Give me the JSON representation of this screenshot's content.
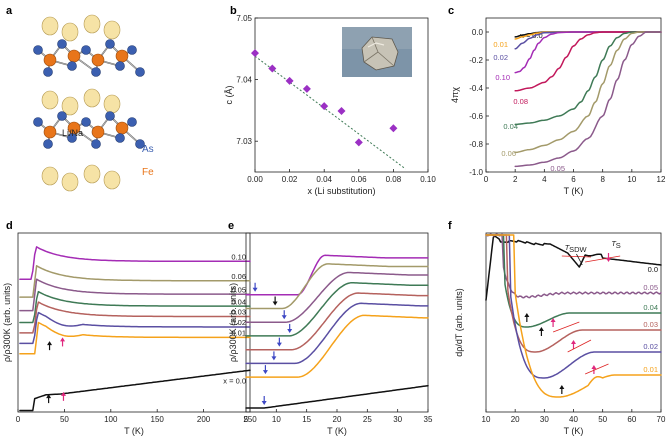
{
  "panels": {
    "a": {
      "label": "a",
      "species": [
        {
          "name": "Li/Na",
          "color": "#f6e3a6"
        },
        {
          "name": "As",
          "color": "#3b5fb0"
        },
        {
          "name": "Fe",
          "color": "#e8751a"
        }
      ]
    },
    "b": {
      "label": "b"
    },
    "c": {
      "label": "c"
    },
    "d": {
      "label": "d"
    },
    "e": {
      "label": "e"
    },
    "f": {
      "label": "f"
    }
  },
  "colors": {
    "x0.00": "#111111",
    "x0.01": "#f5a21b",
    "x0.02": "#5a4fa2",
    "x0.03": "#b5625e",
    "x0.04": "#3f7a56",
    "x0.05": "#8b5a8b",
    "x0.06": "#a39a6a",
    "x0.08": "#c2185b",
    "x0.10": "#a42cb5",
    "arrow_black": "#111111",
    "arrow_pink": "#e0287e",
    "arrow_blue": "#3d47c4",
    "marker_b": "#9b30c4"
  },
  "chart_data": [
    {
      "panel": "b",
      "type": "scatter",
      "ylabel": "c (Å)",
      "xlabel": "x (Li substitution)",
      "xlim": [
        0,
        0.1
      ],
      "ylim": [
        7.025,
        7.05
      ],
      "xticks": [
        "0.00",
        "0.02",
        "0.04",
        "0.06",
        "0.08",
        "0.10"
      ],
      "yticks": [
        "7.03",
        "7.04",
        "7.05"
      ],
      "points": {
        "x": [
          0.0,
          0.01,
          0.02,
          0.03,
          0.04,
          0.05,
          0.06,
          0.08
        ],
        "y": [
          7.0443,
          7.0418,
          7.0398,
          7.0385,
          7.0357,
          7.0349,
          7.0298,
          7.0321
        ]
      },
      "fit": {
        "x": [
          0.0,
          0.087
        ],
        "y": [
          7.0438,
          7.0255
        ]
      }
    },
    {
      "panel": "c",
      "type": "line",
      "ylabel": "4πχ",
      "xlabel": "T (K)",
      "xlim": [
        0,
        12
      ],
      "ylim": [
        -1.0,
        0.1
      ],
      "xticks": [
        "0",
        "2",
        "4",
        "6",
        "8",
        "10",
        "12"
      ],
      "yticks": [
        "0.0",
        "-0.2",
        "-0.4",
        "-0.6",
        "-0.8",
        "-1.0"
      ],
      "series": [
        {
          "name": "x = 0.0",
          "color_key": "x0.00",
          "x": [
            2.0,
            2.5,
            3.0,
            3.5,
            4,
            6,
            12
          ],
          "y": [
            -0.035,
            -0.022,
            -0.012,
            -0.004,
            0.0,
            0.0,
            0.0
          ]
        },
        {
          "name": "0.01",
          "color_key": "x0.01",
          "x": [
            2.0,
            2.5,
            3.0,
            3.5,
            4,
            6,
            12
          ],
          "y": [
            -0.05,
            -0.034,
            -0.02,
            -0.008,
            -0.002,
            0.0,
            0.0
          ]
        },
        {
          "name": "0.02",
          "color_key": "x0.02",
          "x": [
            2.0,
            2.5,
            3.0,
            3.5,
            4,
            6,
            12
          ],
          "y": [
            -0.12,
            -0.08,
            -0.045,
            -0.02,
            -0.005,
            0.0,
            0.0
          ]
        },
        {
          "name": "0.10",
          "color_key": "x0.10",
          "x": [
            2.0,
            2.3,
            2.6,
            3.0,
            3.3,
            3.6,
            4.0,
            4.5,
            5.0,
            6,
            12
          ],
          "y": [
            -0.29,
            -0.282,
            -0.255,
            -0.19,
            -0.13,
            -0.08,
            -0.04,
            -0.015,
            -0.004,
            0.0,
            0.0
          ]
        },
        {
          "name": "0.08",
          "color_key": "x0.08",
          "x": [
            2.0,
            3.0,
            4.0,
            4.5,
            5.0,
            5.5,
            6.0,
            6.5,
            7.0,
            7.5,
            8.0,
            12
          ],
          "y": [
            -0.42,
            -0.4,
            -0.36,
            -0.32,
            -0.26,
            -0.18,
            -0.1,
            -0.05,
            -0.02,
            -0.005,
            0.0,
            0.0
          ]
        },
        {
          "name": "0.04",
          "color_key": "x0.04",
          "x": [
            2.0,
            3.0,
            4.0,
            5.0,
            6.0,
            6.5,
            7.0,
            7.5,
            8.0,
            8.5,
            9.0,
            9.5,
            10.0,
            12
          ],
          "y": [
            -0.66,
            -0.65,
            -0.63,
            -0.6,
            -0.55,
            -0.5,
            -0.42,
            -0.32,
            -0.2,
            -0.1,
            -0.04,
            -0.01,
            0.0,
            0.0
          ]
        },
        {
          "name": "0.06",
          "color_key": "x0.06",
          "x": [
            2.0,
            3.0,
            4.0,
            5.0,
            6.0,
            7.0,
            7.5,
            8.0,
            8.5,
            9.0,
            9.5,
            10.0,
            10.5,
            12
          ],
          "y": [
            -0.86,
            -0.84,
            -0.81,
            -0.77,
            -0.71,
            -0.6,
            -0.5,
            -0.37,
            -0.24,
            -0.13,
            -0.05,
            -0.01,
            0.0,
            0.0
          ]
        },
        {
          "name": "0.05",
          "color_key": "x0.05",
          "x": [
            2.0,
            3.0,
            4.0,
            5.0,
            6.0,
            7.0,
            8.0,
            8.5,
            9.0,
            9.5,
            10.0,
            10.5,
            11.0,
            12
          ],
          "y": [
            -0.96,
            -0.95,
            -0.93,
            -0.9,
            -0.85,
            -0.76,
            -0.6,
            -0.48,
            -0.34,
            -0.2,
            -0.09,
            -0.03,
            0.0,
            0.0
          ]
        }
      ]
    },
    {
      "panel": "d",
      "type": "line",
      "ylabel": "ρ/ρ300K (arb. units)",
      "xlabel": "T (K)",
      "xlim": [
        0,
        250
      ],
      "ylim": [
        0,
        12
      ],
      "xticks": [
        "0",
        "50",
        "100",
        "150",
        "200",
        "250"
      ],
      "series": [
        {
          "name": "0.10",
          "color_key": "x0.10",
          "offset": 9.9,
          "drop": 1.0,
          "tc": 15
        },
        {
          "name": "0.06",
          "color_key": "x0.06",
          "offset": 8.6,
          "drop": 0.9,
          "tc": 16
        },
        {
          "name": "0.05",
          "color_key": "x0.05",
          "offset": 7.7,
          "drop": 0.9,
          "tc": 16
        },
        {
          "name": "0.04",
          "color_key": "x0.04",
          "offset": 6.9,
          "drop": 0.9,
          "tc": 17
        },
        {
          "name": "0.03",
          "color_key": "x0.03",
          "offset": 6.2,
          "drop": 0.9,
          "tc": 17
        },
        {
          "name": "0.02",
          "color_key": "x0.02",
          "offset": 5.5,
          "drop": 0.9,
          "tc": 17
        },
        {
          "name": "0.01",
          "color_key": "x0.01",
          "offset": 4.8,
          "drop": 0.9,
          "tc": 18
        },
        {
          "name": "x = 0.0",
          "color_key": "x0.00",
          "offset": 0.9,
          "drop": 0.8,
          "tc": 18
        }
      ]
    },
    {
      "panel": "e",
      "type": "line",
      "ylabel": "ρ/ρ300K (arb. units)",
      "xlabel": "T (K)",
      "xlim": [
        5,
        35
      ],
      "xticks": [
        "5",
        "10",
        "15",
        "20",
        "25",
        "30",
        "35"
      ],
      "series": [
        {
          "name": "0.10",
          "color_key": "x0.10",
          "base": 6.6,
          "onset": 13.5,
          "end": 18.0,
          "step": 2.3
        },
        {
          "name": "0.06",
          "color_key": "x0.06",
          "base": 5.8,
          "onset": 11.0,
          "end": 18.5,
          "step": 2.6
        },
        {
          "name": "0.05",
          "color_key": "x0.05",
          "base": 5.0,
          "onset": 11.5,
          "end": 22.0,
          "step": 2.9
        },
        {
          "name": "0.04",
          "color_key": "x0.04",
          "base": 4.2,
          "onset": 12.0,
          "end": 22.5,
          "step": 3.1
        },
        {
          "name": "0.03",
          "color_key": "x0.03",
          "base": 3.4,
          "onset": 12.5,
          "end": 23.5,
          "step": 3.3
        },
        {
          "name": "0.02",
          "color_key": "x0.02",
          "base": 2.6,
          "onset": 13.0,
          "end": 24.0,
          "step": 3.5
        },
        {
          "name": "0.01",
          "color_key": "x0.01",
          "base": 1.8,
          "onset": 13.5,
          "end": 24.5,
          "step": 3.6
        },
        {
          "name": "x = 0.0",
          "color_key": "x0.00",
          "base": 0.0,
          "onset": 8.0,
          "end": 35.0,
          "step": 1.3
        }
      ],
      "arrows_x": [
        6.5,
        9.8,
        11.3,
        12.2,
        10.5,
        9.6,
        8.2
      ]
    },
    {
      "panel": "f",
      "type": "line",
      "ylabel": "dρ/dT (arb. units)",
      "xlabel": "T (K)",
      "xlim": [
        10,
        70
      ],
      "xticks": [
        "10",
        "20",
        "30",
        "40",
        "50",
        "60",
        "70"
      ],
      "annotations": {
        "tsdw": "SDW",
        "ts": "S"
      },
      "series": [
        {
          "name": "0.0",
          "color_key": "x0.00"
        },
        {
          "name": "0.05",
          "color_key": "x0.05"
        },
        {
          "name": "0.04",
          "color_key": "x0.04"
        },
        {
          "name": "0.03",
          "color_key": "x0.03"
        },
        {
          "name": "0.02",
          "color_key": "x0.02"
        },
        {
          "name": "0.01",
          "color_key": "x0.01"
        }
      ]
    }
  ]
}
